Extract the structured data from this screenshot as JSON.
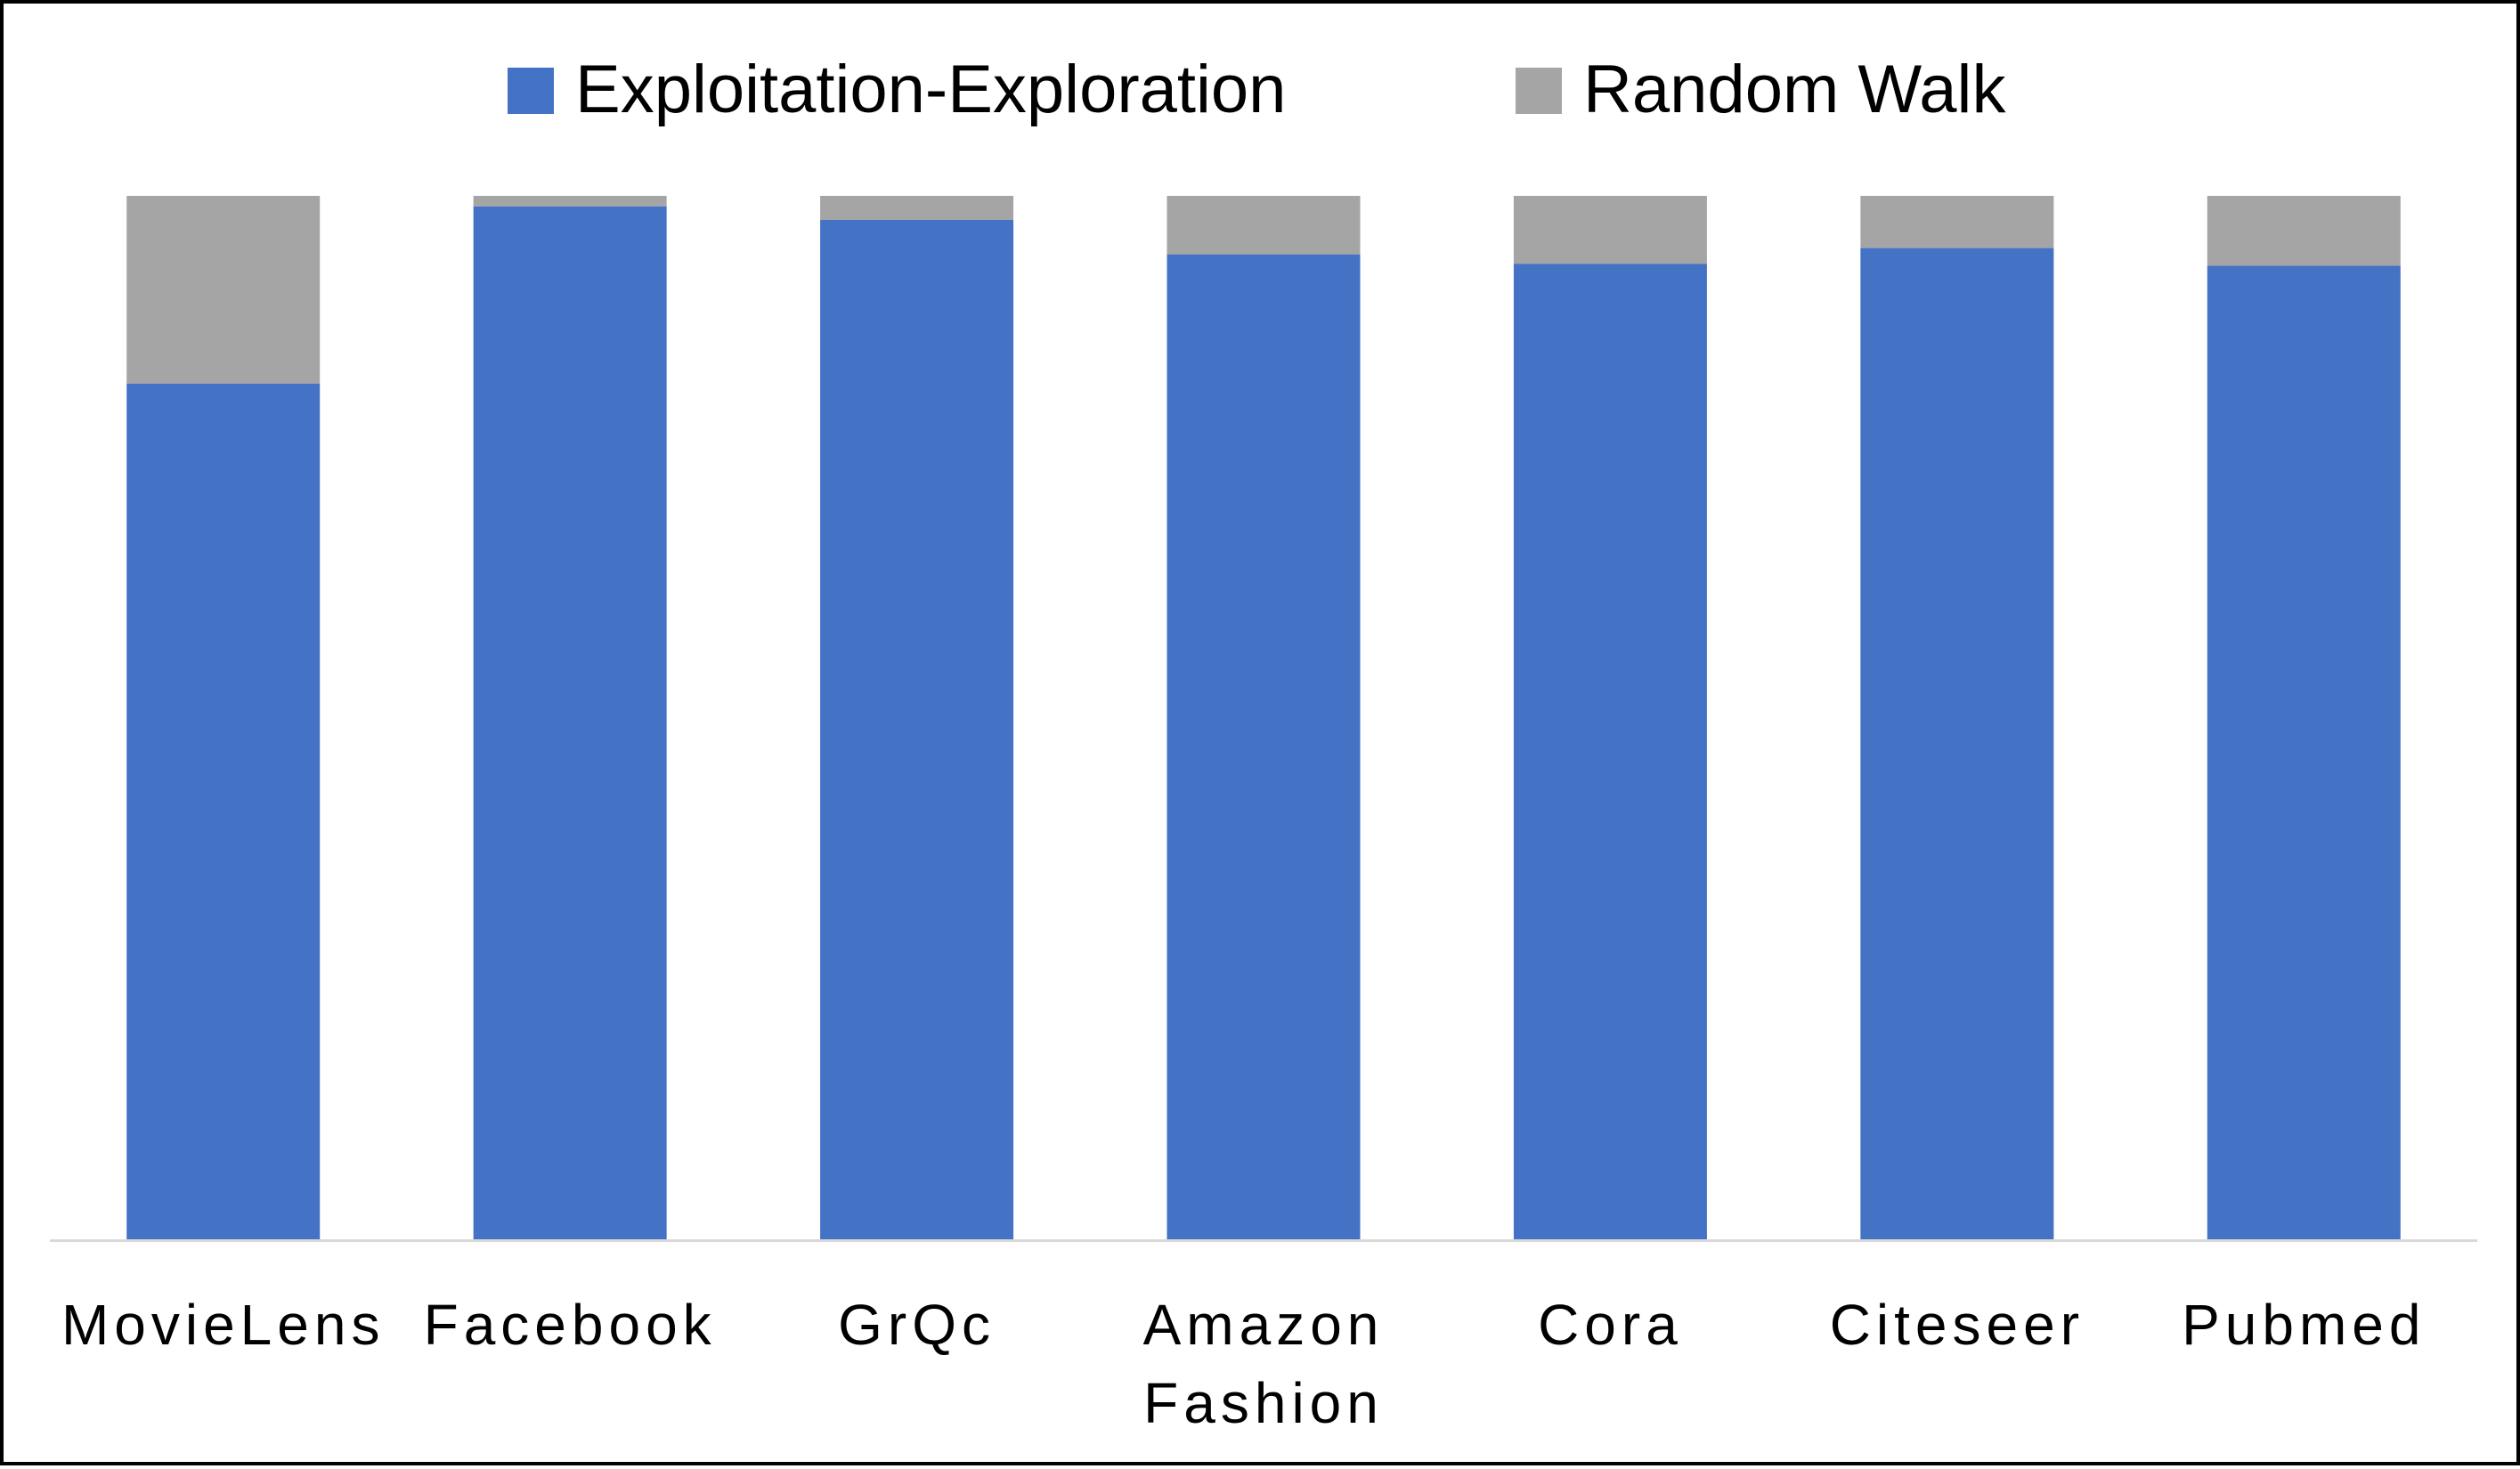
{
  "chart_data": {
    "type": "bar",
    "stacked": true,
    "categories": [
      [
        "MovieLens"
      ],
      [
        "Facebook"
      ],
      [
        "GrQc"
      ],
      [
        "Amazon",
        "Fashion"
      ],
      [
        "Cora"
      ],
      [
        "Citeseer"
      ],
      [
        "Pubmed"
      ]
    ],
    "series": [
      {
        "name": "Exploitation-Exploration",
        "color": "#4472C4",
        "values": [
          0.82,
          0.99,
          0.977,
          0.944,
          0.935,
          0.95,
          0.933
        ]
      },
      {
        "name": "Random Walk",
        "color": "#A5A5A5",
        "values": [
          0.18,
          0.01,
          0.023,
          0.056,
          0.065,
          0.05,
          0.067
        ]
      }
    ],
    "ylim": [
      0,
      1
    ],
    "title": "",
    "xlabel": "",
    "ylabel": "",
    "grid": false,
    "legend": "top-center",
    "axis_color": "#D9D9D9"
  }
}
